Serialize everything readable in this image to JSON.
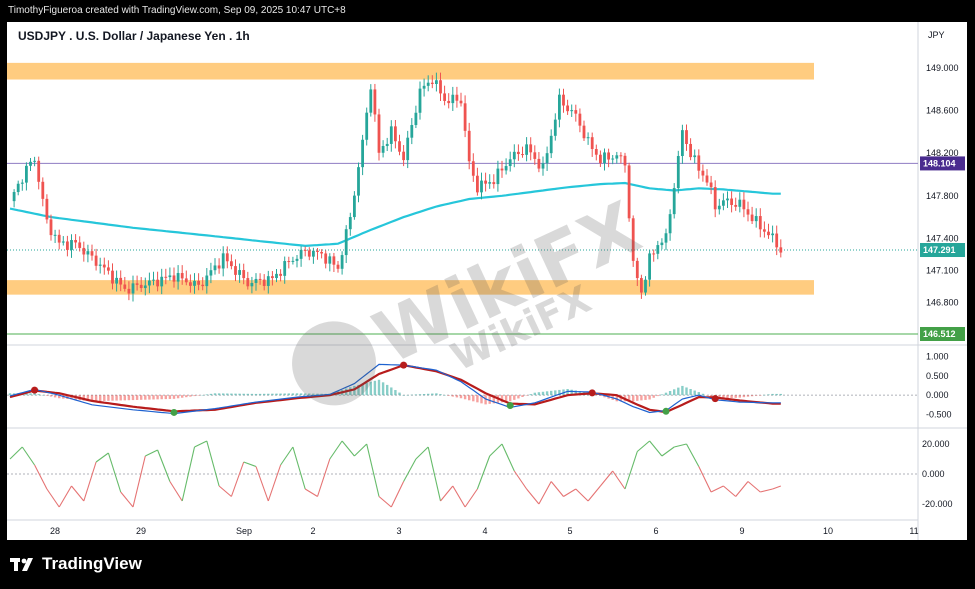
{
  "header": {
    "credit": "TimothyFigueroa created with TradingView.com, Sep 09, 2025 10:47 UTC+8"
  },
  "footer": {
    "brand": "TradingView"
  },
  "watermark": {
    "text": "WikiFX"
  },
  "colors": {
    "background": "#ffffff",
    "frame": "#000000",
    "up_candle": "#26a69a",
    "down_candle": "#ef5350",
    "ma_line": "#26c6da",
    "zone_fill": "#ffcc80",
    "purple_line": "#8e7cc3",
    "green_line": "#4caf50",
    "price_tag": "#4a2c8f",
    "macd_line": "#1e62d0",
    "signal_line": "#b71c1c",
    "rsi_up": "#66bb6a",
    "rsi_down": "#e57373"
  },
  "chart_data": [
    {
      "type": "candlestick",
      "title": "USDJPY . U.S. Dollar / Japanese Yen . 1h",
      "currency": "JPY",
      "x_ticks": [
        "28",
        "29",
        "Sep",
        "2",
        "3",
        "4",
        "5",
        "6",
        "9",
        "10",
        "11"
      ],
      "y_ticks": [
        "149.000",
        "148.600",
        "148.200",
        "147.800",
        "147.400",
        "147.100",
        "146.800"
      ],
      "ylim": [
        146.6,
        149.25
      ],
      "zones": [
        {
          "low": 148.92,
          "high": 149.02
        },
        {
          "low": 146.9,
          "high": 146.98
        }
      ],
      "levels": [
        {
          "value": 148.104,
          "label": "148.104",
          "color": "#4a2c8f"
        },
        {
          "value": 146.512,
          "label": "146.512",
          "color": "#43a047"
        }
      ],
      "last_price": {
        "value": 147.291,
        "label": "147.291"
      },
      "anchors": [
        [
          0,
          147.75
        ],
        [
          4,
          148.05
        ],
        [
          6,
          148.15
        ],
        [
          9,
          147.55
        ],
        [
          12,
          147.35
        ],
        [
          16,
          147.35
        ],
        [
          22,
          147.15
        ],
        [
          28,
          146.92
        ],
        [
          34,
          146.98
        ],
        [
          40,
          147.05
        ],
        [
          46,
          146.95
        ],
        [
          52,
          147.22
        ],
        [
          58,
          146.98
        ],
        [
          64,
          147.02
        ],
        [
          68,
          147.18
        ],
        [
          72,
          147.28
        ],
        [
          76,
          147.25
        ],
        [
          80,
          147.12
        ],
        [
          83,
          147.6
        ],
        [
          86,
          148.3
        ],
        [
          88,
          148.85
        ],
        [
          90,
          148.2
        ],
        [
          93,
          148.4
        ],
        [
          96,
          148.15
        ],
        [
          100,
          148.78
        ],
        [
          103,
          148.9
        ],
        [
          106,
          148.7
        ],
        [
          110,
          148.7
        ],
        [
          112,
          148.1
        ],
        [
          114,
          147.88
        ],
        [
          118,
          147.95
        ],
        [
          122,
          148.15
        ],
        [
          126,
          148.25
        ],
        [
          130,
          148.05
        ],
        [
          134,
          148.7
        ],
        [
          138,
          148.55
        ],
        [
          141,
          148.3
        ],
        [
          144,
          148.14
        ],
        [
          148,
          148.18
        ],
        [
          150,
          148.1
        ],
        [
          152,
          147.15
        ],
        [
          154,
          146.9
        ],
        [
          156,
          147.2
        ],
        [
          158,
          147.35
        ],
        [
          160,
          147.4
        ],
        [
          162,
          147.9
        ],
        [
          164,
          148.4
        ],
        [
          166,
          148.2
        ],
        [
          168,
          148.05
        ],
        [
          170,
          147.95
        ],
        [
          172,
          147.7
        ],
        [
          174,
          147.75
        ],
        [
          178,
          147.72
        ],
        [
          182,
          147.55
        ],
        [
          186,
          147.4
        ],
        [
          188,
          147.29
        ]
      ],
      "ma": [
        [
          0,
          147.68
        ],
        [
          10,
          147.6
        ],
        [
          30,
          147.5
        ],
        [
          50,
          147.42
        ],
        [
          62,
          147.37
        ],
        [
          72,
          147.33
        ],
        [
          80,
          147.35
        ],
        [
          88,
          147.48
        ],
        [
          96,
          147.6
        ],
        [
          104,
          147.7
        ],
        [
          112,
          147.77
        ],
        [
          120,
          147.8
        ],
        [
          128,
          147.84
        ],
        [
          136,
          147.88
        ],
        [
          144,
          147.91
        ],
        [
          150,
          147.92
        ],
        [
          156,
          147.87
        ],
        [
          162,
          147.85
        ],
        [
          168,
          147.87
        ],
        [
          174,
          147.86
        ],
        [
          180,
          147.84
        ],
        [
          186,
          147.82
        ]
      ]
    },
    {
      "type": "macd",
      "y_ticks": [
        "1.000",
        "0.500",
        "0.000",
        "-0.500"
      ],
      "ylim": [
        -0.75,
        1.2
      ],
      "macd": [
        [
          0,
          -0.02
        ],
        [
          6,
          0.15
        ],
        [
          12,
          0.0
        ],
        [
          20,
          -0.25
        ],
        [
          30,
          -0.38
        ],
        [
          40,
          -0.48
        ],
        [
          50,
          -0.35
        ],
        [
          60,
          -0.18
        ],
        [
          70,
          -0.05
        ],
        [
          78,
          0.02
        ],
        [
          84,
          0.3
        ],
        [
          90,
          0.8
        ],
        [
          96,
          0.78
        ],
        [
          104,
          0.65
        ],
        [
          110,
          0.35
        ],
        [
          116,
          -0.1
        ],
        [
          122,
          -0.32
        ],
        [
          128,
          -0.2
        ],
        [
          136,
          0.1
        ],
        [
          142,
          0.08
        ],
        [
          148,
          -0.1
        ],
        [
          152,
          -0.3
        ],
        [
          156,
          -0.45
        ],
        [
          160,
          -0.4
        ],
        [
          164,
          -0.1
        ],
        [
          168,
          0.0
        ],
        [
          172,
          -0.12
        ],
        [
          178,
          -0.18
        ],
        [
          186,
          -0.2
        ]
      ],
      "signal": [
        [
          0,
          -0.05
        ],
        [
          6,
          0.12
        ],
        [
          12,
          0.05
        ],
        [
          20,
          -0.15
        ],
        [
          30,
          -0.3
        ],
        [
          40,
          -0.42
        ],
        [
          50,
          -0.38
        ],
        [
          60,
          -0.2
        ],
        [
          70,
          -0.08
        ],
        [
          78,
          0.0
        ],
        [
          84,
          0.15
        ],
        [
          90,
          0.55
        ],
        [
          96,
          0.78
        ],
        [
          104,
          0.62
        ],
        [
          110,
          0.4
        ],
        [
          116,
          0.05
        ],
        [
          122,
          -0.22
        ],
        [
          128,
          -0.24
        ],
        [
          136,
          0.0
        ],
        [
          142,
          0.05
        ],
        [
          148,
          0.0
        ],
        [
          152,
          -0.2
        ],
        [
          156,
          -0.38
        ],
        [
          160,
          -0.44
        ],
        [
          164,
          -0.25
        ],
        [
          168,
          -0.05
        ],
        [
          172,
          -0.06
        ],
        [
          178,
          -0.14
        ],
        [
          186,
          -0.22
        ]
      ],
      "cross_up": [
        [
          40,
          -0.45
        ],
        [
          122,
          -0.27
        ],
        [
          160,
          -0.42
        ]
      ],
      "cross_down": [
        [
          6,
          0.13
        ],
        [
          96,
          0.78
        ],
        [
          142,
          0.06
        ],
        [
          172,
          -0.09
        ]
      ]
    },
    {
      "type": "oscillator",
      "y_ticks": [
        "20.000",
        "0.000",
        "-20.000"
      ],
      "ylim": [
        -28,
        28
      ],
      "values": [
        [
          0,
          10
        ],
        [
          3,
          18
        ],
        [
          6,
          6
        ],
        [
          9,
          -10
        ],
        [
          12,
          -22
        ],
        [
          15,
          -8
        ],
        [
          18,
          -18
        ],
        [
          21,
          8
        ],
        [
          24,
          14
        ],
        [
          27,
          -12
        ],
        [
          30,
          -22
        ],
        [
          33,
          12
        ],
        [
          36,
          16
        ],
        [
          39,
          -5
        ],
        [
          42,
          -18
        ],
        [
          45,
          18
        ],
        [
          48,
          22
        ],
        [
          51,
          -8
        ],
        [
          54,
          -15
        ],
        [
          57,
          8
        ],
        [
          60,
          5
        ],
        [
          63,
          -18
        ],
        [
          66,
          6
        ],
        [
          69,
          18
        ],
        [
          72,
          -10
        ],
        [
          75,
          -15
        ],
        [
          78,
          10
        ],
        [
          81,
          22
        ],
        [
          84,
          12
        ],
        [
          87,
          20
        ],
        [
          90,
          -15
        ],
        [
          93,
          -22
        ],
        [
          96,
          -5
        ],
        [
          99,
          10
        ],
        [
          102,
          18
        ],
        [
          105,
          -18
        ],
        [
          108,
          -8
        ],
        [
          111,
          -22
        ],
        [
          114,
          -10
        ],
        [
          117,
          12
        ],
        [
          120,
          20
        ],
        [
          123,
          2
        ],
        [
          126,
          -10
        ],
        [
          129,
          -20
        ],
        [
          132,
          -5
        ],
        [
          135,
          -15
        ],
        [
          138,
          -10
        ],
        [
          141,
          -18
        ],
        [
          144,
          -8
        ],
        [
          147,
          2
        ],
        [
          150,
          -10
        ],
        [
          153,
          15
        ],
        [
          156,
          22
        ],
        [
          159,
          12
        ],
        [
          162,
          18
        ],
        [
          165,
          20
        ],
        [
          168,
          5
        ],
        [
          171,
          -12
        ],
        [
          174,
          -8
        ],
        [
          177,
          -15
        ],
        [
          180,
          -5
        ],
        [
          183,
          -12
        ],
        [
          186,
          -10
        ],
        [
          188,
          -8
        ]
      ]
    }
  ]
}
